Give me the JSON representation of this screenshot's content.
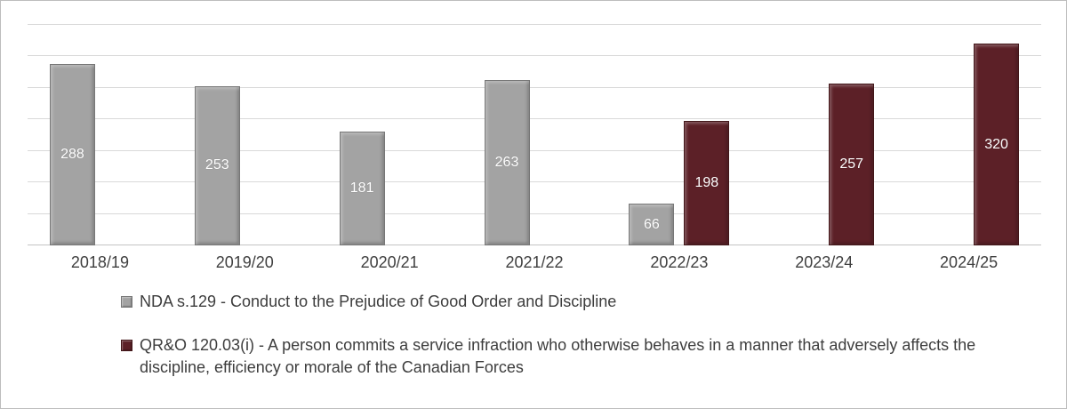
{
  "chart_data": {
    "type": "bar",
    "title": "",
    "xlabel": "",
    "ylabel": "",
    "categories": [
      "2018/19",
      "2019/20",
      "2020/21",
      "2021/22",
      "2022/23",
      "2023/24",
      "2024/25"
    ],
    "series": [
      {
        "name": "NDA s.129 - Conduct to the Prejudice of Good Order and Discipline",
        "color": "#a3a3a3",
        "border_color": "#777777",
        "values": [
          288,
          253,
          181,
          263,
          66,
          null,
          null
        ]
      },
      {
        "name": "QR&O 120.03(i) - A person commits a service infraction who otherwise behaves in a manner that adversely affects the discipline, efficiency or morale of the Canadian Forces",
        "color": "#5c2027",
        "border_color": "#421619",
        "values": [
          null,
          null,
          null,
          null,
          198,
          257,
          320
        ]
      }
    ],
    "ylim": [
      0,
      350
    ],
    "grid": true,
    "grid_step": 50,
    "legend_position": "bottom",
    "value_labels": "inside-center-white"
  }
}
